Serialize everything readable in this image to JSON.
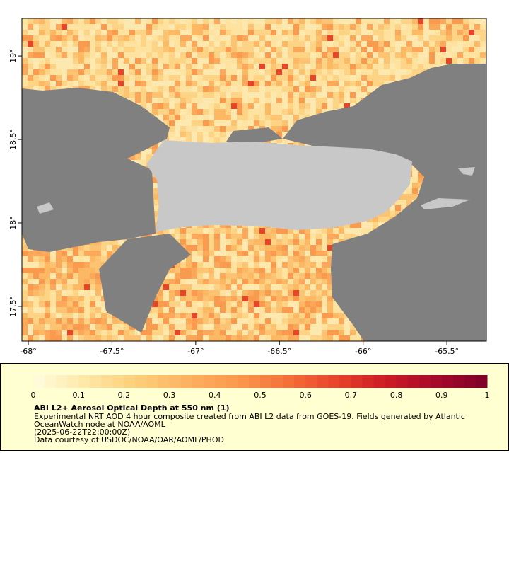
{
  "map": {
    "xlim": [
      -68.038,
      -65.264
    ],
    "ylim": [
      17.292,
      19.225
    ],
    "xticks": [
      {
        "value": -68,
        "label": "-68°"
      },
      {
        "value": -67.5,
        "label": "-67.5°"
      },
      {
        "value": -67,
        "label": "-67°"
      },
      {
        "value": -66.5,
        "label": "-66.5°"
      },
      {
        "value": -66,
        "label": "-66°"
      },
      {
        "value": -65.5,
        "label": "-65.5°"
      }
    ],
    "yticks": [
      {
        "value": 19,
        "label": "19°"
      },
      {
        "value": 18.5,
        "label": "18.5°"
      },
      {
        "value": 18,
        "label": "18°"
      },
      {
        "value": 17.5,
        "label": "17.5°"
      }
    ]
  },
  "colorbar": {
    "range": [
      0,
      1
    ],
    "ticks": [
      0,
      0.1,
      0.2,
      0.3,
      0.4,
      0.5,
      0.6,
      0.7,
      0.8,
      0.9,
      1
    ],
    "colors": [
      "#fffde0",
      "#fee9a8",
      "#fdd07a",
      "#fcb462",
      "#fa9a4c",
      "#f4733a",
      "#e8442a",
      "#cc1a24",
      "#a50a2a",
      "#7f0028"
    ]
  },
  "legend": {
    "title": "ABI L2+ Aerosol Optical Depth at 550 nm (1)",
    "lines": [
      "Experimental NRT AOD 4 hour composite created from ABI L2 data from GOES-19. Fields generated by Atlantic",
      "OceanWatch node at NOAA/AOML",
      "(2025-06-22T22:00:00Z)",
      "Data courtesy of USDOC/NOAA/OAR/AOML/PHOD"
    ]
  }
}
